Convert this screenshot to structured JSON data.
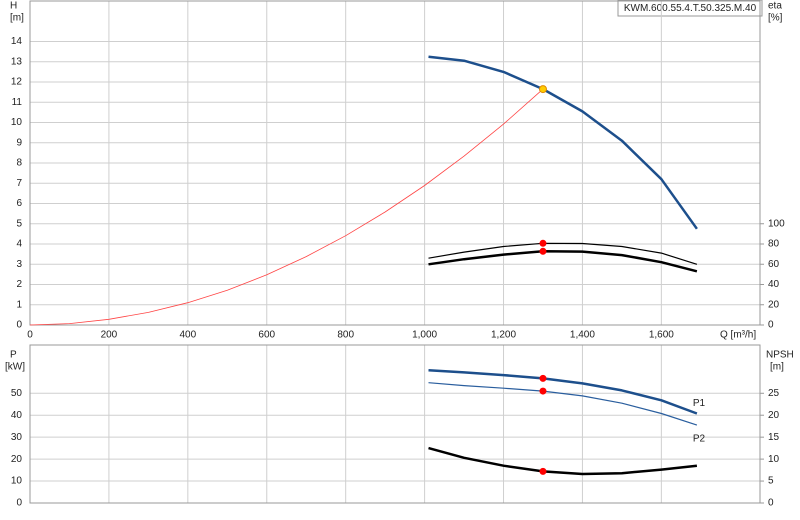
{
  "chart_data": [
    {
      "type": "line",
      "title": "KWM.600.55.4.T.50.325.M.40",
      "x_label": "Q [m³/h]",
      "y_label": "H",
      "y_unit": "[m]",
      "y2_label": "eta",
      "y2_unit": "[%]",
      "xlim": [
        0,
        1850
      ],
      "xticks": [
        0,
        200,
        400,
        600,
        800,
        {
          "value": 1000,
          "label": "1,000"
        },
        {
          "value": 1200,
          "label": "1,200"
        },
        {
          "value": 1400,
          "label": "1,400"
        },
        {
          "value": 1600,
          "label": "1,600"
        }
      ],
      "ylim": [
        0,
        16
      ],
      "yticks": [
        0,
        1,
        2,
        3,
        4,
        5,
        6,
        7,
        8,
        9,
        10,
        11,
        12,
        13,
        14
      ],
      "y2lim": [
        0,
        320
      ],
      "y2ticks": [
        0,
        20,
        40,
        60,
        80,
        100
      ],
      "grid": true,
      "series": [
        {
          "color": "#1d4f8c",
          "width": 2.5,
          "x": [
            1010,
            1100,
            1200,
            1300,
            1400,
            1500,
            1600,
            1690
          ],
          "values": [
            13.25,
            13.05,
            12.5,
            11.65,
            10.55,
            9.1,
            7.2,
            4.75
          ]
        },
        {
          "color": "#ff4444",
          "width": 0.8,
          "x": [
            0,
            100,
            200,
            300,
            400,
            500,
            600,
            700,
            800,
            900,
            1000,
            1100,
            1200,
            1300
          ],
          "values": [
            0,
            0.07,
            0.28,
            0.62,
            1.1,
            1.72,
            2.48,
            3.38,
            4.41,
            5.58,
            6.89,
            8.34,
            9.92,
            11.65
          ]
        },
        {
          "color": "#000000",
          "width": 1.2,
          "axis": "y2",
          "x": [
            1010,
            1100,
            1200,
            1300,
            1400,
            1500,
            1600,
            1690
          ],
          "values": [
            66,
            72,
            77.5,
            80.7,
            80.5,
            77.5,
            71,
            60
          ]
        },
        {
          "color": "#000000",
          "width": 2.5,
          "axis": "y2",
          "x": [
            1010,
            1100,
            1200,
            1300,
            1400,
            1500,
            1600,
            1690
          ],
          "values": [
            60,
            65,
            69.5,
            72.8,
            72.5,
            69,
            62,
            53
          ]
        },
        {
          "color": "#ffcc00",
          "marker": true,
          "x": [
            1300
          ],
          "values": [
            11.65
          ]
        },
        {
          "color": "#ff0000",
          "marker": true,
          "axis": "y2",
          "x": [
            1300
          ],
          "values": [
            80.7
          ]
        },
        {
          "color": "#ff0000",
          "marker": true,
          "axis": "y2",
          "x": [
            1300
          ],
          "values": [
            72.8
          ]
        }
      ]
    },
    {
      "type": "line",
      "y_label": "P",
      "y_unit": "[kW]",
      "y2_label": "NPSH",
      "y2_unit": "[m]",
      "xlim": [
        0,
        1850
      ],
      "xgrid": [
        0,
        200,
        400,
        600,
        800,
        1000,
        1200,
        1400,
        1600
      ],
      "ylim": [
        0,
        72
      ],
      "yticks": [
        0,
        10,
        20,
        30,
        40,
        50
      ],
      "y2lim": [
        0,
        36
      ],
      "y2ticks": [
        0,
        5,
        10,
        15,
        20,
        25
      ],
      "grid": true,
      "series": [
        {
          "name": "P1",
          "color": "#1d4f8c",
          "width": 2.5,
          "x": [
            1010,
            1100,
            1200,
            1300,
            1400,
            1500,
            1600,
            1690
          ],
          "values": [
            60.5,
            59.5,
            58.3,
            56.8,
            54.5,
            51.3,
            46.8,
            40.8
          ]
        },
        {
          "name": "P2",
          "color": "#2a5e9e",
          "width": 1.2,
          "x": [
            1010,
            1100,
            1200,
            1300,
            1400,
            1500,
            1600,
            1690
          ],
          "values": [
            54.8,
            53.5,
            52.3,
            51,
            48.8,
            45.5,
            40.8,
            35.5
          ]
        },
        {
          "color": "#000000",
          "width": 2.5,
          "axis": "y2",
          "x": [
            1010,
            1100,
            1200,
            1300,
            1400,
            1500,
            1600,
            1690
          ],
          "values": [
            12.5,
            10.3,
            8.5,
            7.2,
            6.6,
            6.8,
            7.6,
            8.5
          ]
        },
        {
          "color": "#ff0000",
          "marker": true,
          "x": [
            1300
          ],
          "values": [
            56.8
          ]
        },
        {
          "color": "#ff0000",
          "marker": true,
          "x": [
            1300
          ],
          "values": [
            51
          ]
        },
        {
          "color": "#ff0000",
          "marker": true,
          "axis": "y2",
          "x": [
            1300
          ],
          "values": [
            7.2
          ]
        }
      ]
    }
  ]
}
